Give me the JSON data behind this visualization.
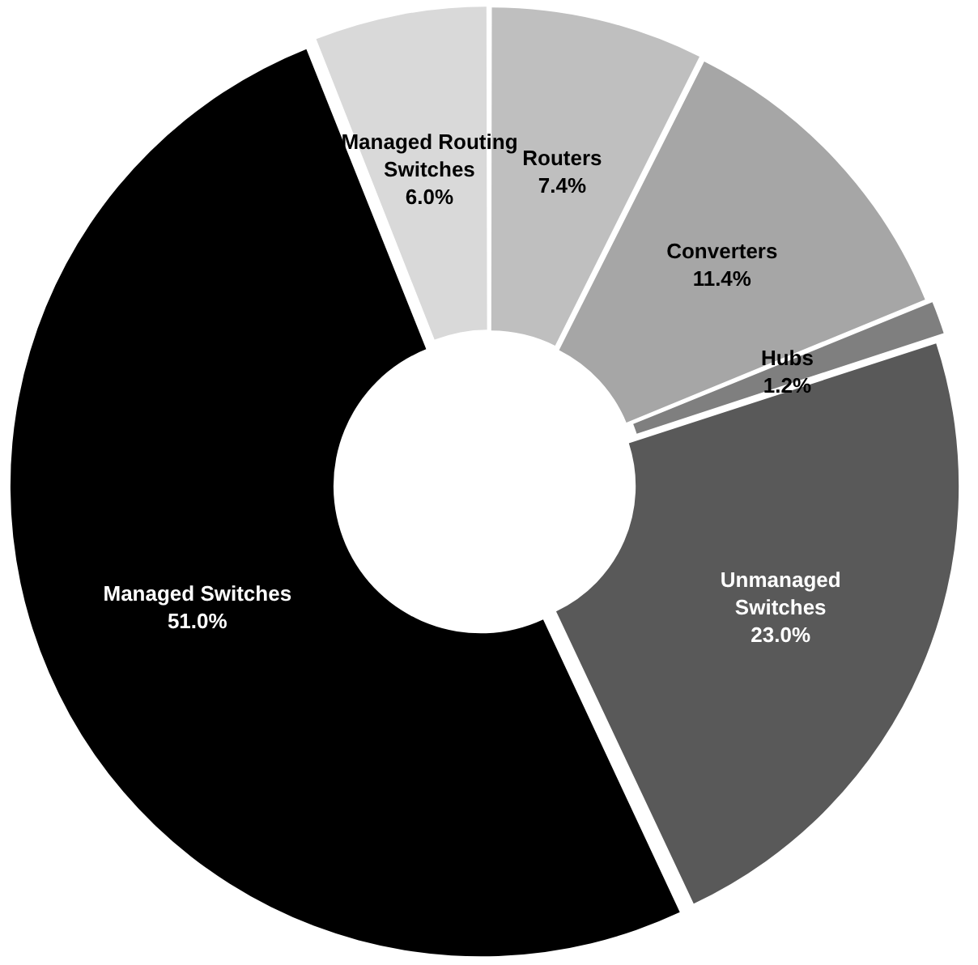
{
  "chart_data": {
    "type": "donut",
    "categories": [
      "Routers",
      "Converters",
      "Hubs",
      "Unmanaged Switches",
      "Managed Switches",
      "Managed Routing Switches"
    ],
    "values": [
      7.4,
      11.4,
      1.2,
      23.0,
      51.0,
      6.0
    ],
    "value_labels": [
      "7.4%",
      "11.4%",
      "1.2%",
      "23.0%",
      "51.0%",
      "6.0%"
    ],
    "colors": [
      "#bfbfbf",
      "#a6a6a6",
      "#7f7f7f",
      "#595959",
      "#000000",
      "#d9d9d9"
    ],
    "legend": false
  }
}
